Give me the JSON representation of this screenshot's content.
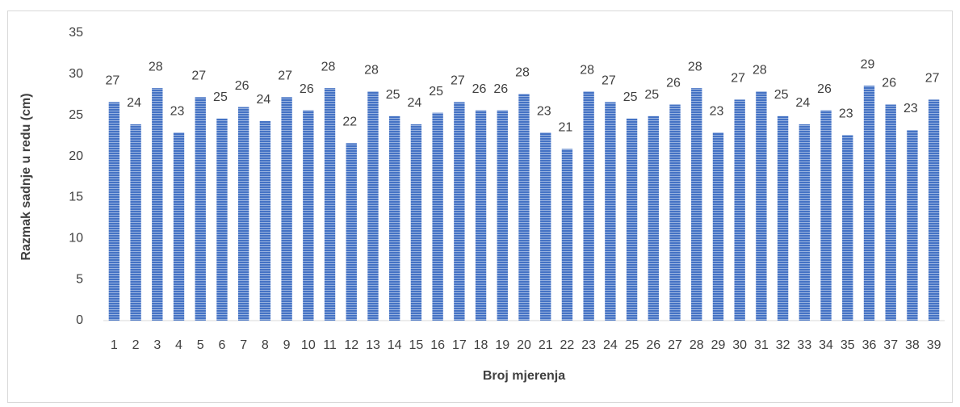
{
  "chart_data": {
    "type": "bar",
    "categories": [
      "1",
      "2",
      "3",
      "4",
      "5",
      "6",
      "7",
      "8",
      "9",
      "10",
      "11",
      "12",
      "13",
      "14",
      "15",
      "16",
      "17",
      "18",
      "19",
      "20",
      "21",
      "22",
      "23",
      "24",
      "25",
      "26",
      "27",
      "28",
      "29",
      "30",
      "31",
      "32",
      "33",
      "34",
      "35",
      "36",
      "37",
      "38",
      "39"
    ],
    "values": [
      26.6,
      23.9,
      28.3,
      22.9,
      27.2,
      24.6,
      26.0,
      24.3,
      27.2,
      25.6,
      28.3,
      21.6,
      27.9,
      24.9,
      23.9,
      25.3,
      26.6,
      25.6,
      25.6,
      27.6,
      22.9,
      20.9,
      27.9,
      26.6,
      24.6,
      24.9,
      26.3,
      28.3,
      22.9,
      26.9,
      27.9,
      24.9,
      23.9,
      25.6,
      22.6,
      28.6,
      26.3,
      23.2,
      26.9
    ],
    "value_labels": [
      "27",
      "24",
      "28",
      "23",
      "27",
      "25",
      "26",
      "24",
      "27",
      "26",
      "28",
      "22",
      "28",
      "25",
      "24",
      "25",
      "27",
      "26",
      "26",
      "28",
      "23",
      "21",
      "28",
      "27",
      "25",
      "25",
      "26",
      "28",
      "23",
      "27",
      "28",
      "25",
      "24",
      "26",
      "23",
      "29",
      "26",
      "23",
      "27"
    ],
    "color": "#4472c4",
    "ylim": [
      0,
      35
    ],
    "yticks": [
      0,
      5,
      10,
      15,
      20,
      25,
      30,
      35
    ],
    "x_label": "Broj mjerenja",
    "y_label": "Razmak sadnje u redu (cm)",
    "grid": false
  }
}
